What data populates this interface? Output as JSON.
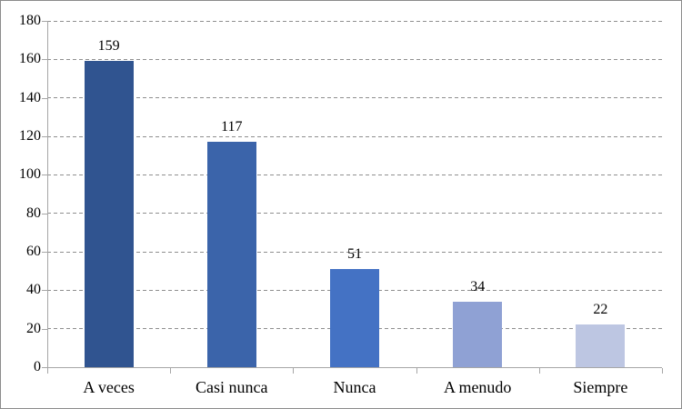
{
  "chart_data": {
    "type": "bar",
    "title": "",
    "xlabel": "",
    "ylabel": "",
    "categories": [
      "A veces",
      "Casi nunca",
      "Nunca",
      "A menudo",
      "Siempre"
    ],
    "values": [
      159,
      117,
      51,
      34,
      22
    ],
    "value_labels": [
      "159",
      "117",
      "51",
      "34",
      "22"
    ],
    "bar_colors": [
      "#305490",
      "#3B64AA",
      "#4472C4",
      "#8FA1D4",
      "#BDC6E2"
    ],
    "ylim": [
      0,
      180
    ],
    "ytick_step": 20,
    "yticks": [
      0,
      20,
      40,
      60,
      80,
      100,
      120,
      140,
      160,
      180
    ],
    "grid": "horizontal-dashed",
    "legend": "none",
    "colors": {
      "gridline": "#8F8F8F",
      "axis_line": "#A6A6A6",
      "text": "#000000",
      "frame_border": "#8C8C8C",
      "background": "#FFFFFF"
    }
  }
}
